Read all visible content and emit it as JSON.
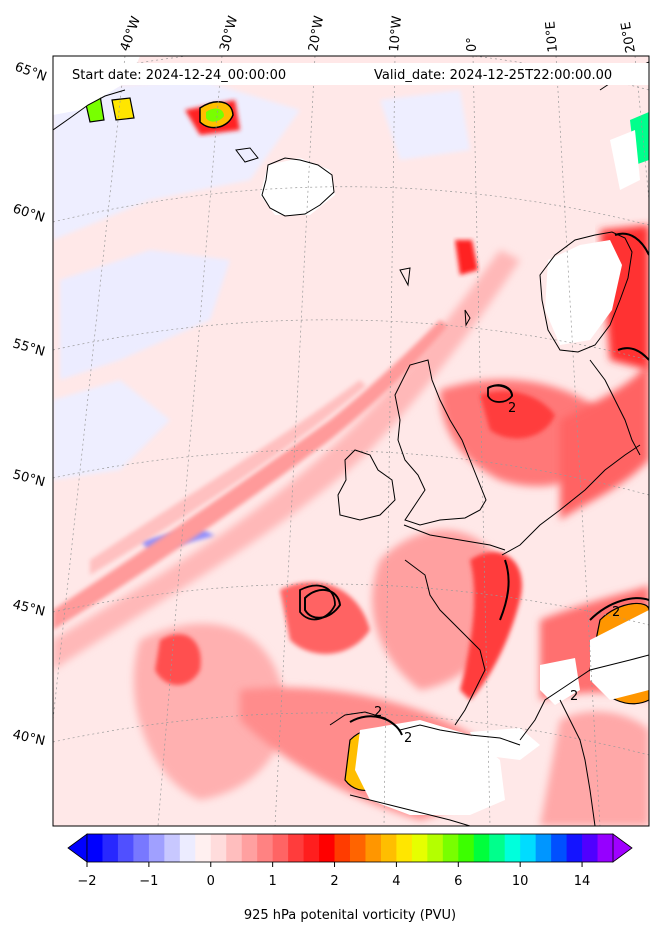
{
  "header": {
    "start_date": "Start date: 2024-12-24_00:00:00",
    "valid_date": "Valid_date: 2024-12-25T22:00:00.00"
  },
  "map": {
    "projection": "lambert-conformal",
    "lon_labels": [
      "40°W",
      "30°W",
      "20°W",
      "10°W",
      "0°",
      "10°E",
      "20°E"
    ],
    "lat_labels": [
      "65°N",
      "60°N",
      "55°N",
      "50°N",
      "45°N",
      "40°N"
    ],
    "contour_label": "2",
    "field": "925 hPa potential vorticity"
  },
  "colorbar": {
    "title": "925 hPa potenital vorticity (PVU)",
    "tick_labels": [
      "−2",
      "−1",
      "0",
      "1",
      "2",
      "4",
      "6",
      "10",
      "14"
    ],
    "colors": [
      "#0000ff",
      "#2828ff",
      "#5050ff",
      "#7878ff",
      "#a0a0ff",
      "#c8c8ff",
      "#ececff",
      "#fff0f0",
      "#ffdcdc",
      "#ffbebe",
      "#ffa0a0",
      "#ff8282",
      "#ff6464",
      "#ff3c3c",
      "#ff1e1e",
      "#ff0000",
      "#ff3c00",
      "#ff6400",
      "#ff9600",
      "#ffbe00",
      "#ffe600",
      "#e6ff00",
      "#b4ff00",
      "#78ff00",
      "#3cff00",
      "#00ff3c",
      "#00ff8c",
      "#00ffdc",
      "#00dcff",
      "#0096ff",
      "#0050ff",
      "#1414ff",
      "#5000ff",
      "#9600ff"
    ],
    "under_color": "#0000ff",
    "over_color": "#a000ff"
  }
}
